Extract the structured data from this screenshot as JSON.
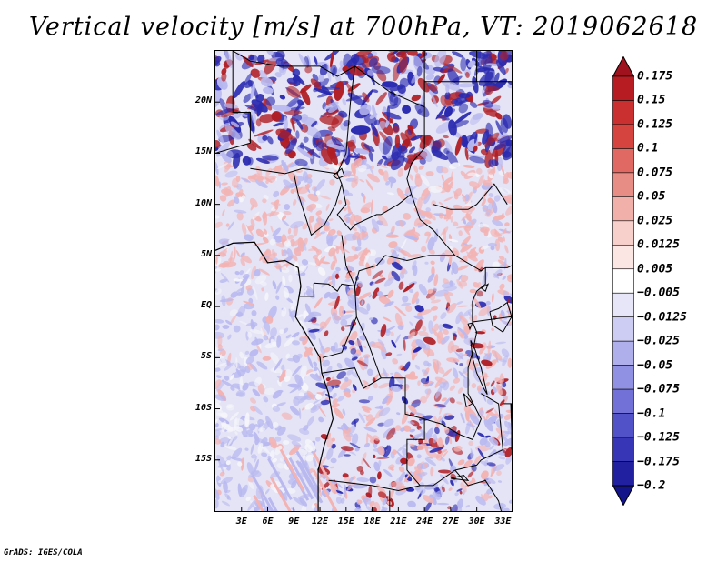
{
  "title": "Vertical velocity [m/s] at 700hPa, VT: 2019062618",
  "credit": "GrADS: IGES/COLA",
  "map": {
    "lon_range": [
      0,
      34
    ],
    "lat_range": [
      -20,
      25
    ],
    "lat_ticks": [
      {
        "value": 20,
        "label": "20N"
      },
      {
        "value": 15,
        "label": "15N"
      },
      {
        "value": 10,
        "label": "10N"
      },
      {
        "value": 5,
        "label": "5N"
      },
      {
        "value": 0,
        "label": "EQ"
      },
      {
        "value": -5,
        "label": "5S"
      },
      {
        "value": -10,
        "label": "10S"
      },
      {
        "value": -15,
        "label": "15S"
      }
    ],
    "lon_ticks": [
      {
        "value": 3,
        "label": "3E"
      },
      {
        "value": 6,
        "label": "6E"
      },
      {
        "value": 9,
        "label": "9E"
      },
      {
        "value": 12,
        "label": "12E"
      },
      {
        "value": 15,
        "label": "15E"
      },
      {
        "value": 18,
        "label": "18E"
      },
      {
        "value": 21,
        "label": "21E"
      },
      {
        "value": 24,
        "label": "24E"
      },
      {
        "value": 27,
        "label": "27E"
      },
      {
        "value": 30,
        "label": "30E"
      },
      {
        "value": 33,
        "label": "33E"
      }
    ],
    "field_colors": {
      "strong_up": "#b01e24",
      "weak_up": "#f3b3b3",
      "neutral": "#f4f4fa",
      "weak_down": "#b9b9f0",
      "strong_down": "#2a2ab0"
    }
  },
  "colorbar": {
    "labels": [
      "0.175",
      "0.15",
      "0.125",
      "0.1",
      "0.075",
      "0.05",
      "0.025",
      "0.0125",
      "0.005",
      "−0.005",
      "−0.0125",
      "−0.025",
      "−0.05",
      "−0.075",
      "−0.1",
      "−0.125",
      "−0.175",
      "−0.2"
    ],
    "colors": [
      "#a0131e",
      "#b71c23",
      "#c9302f",
      "#d6443f",
      "#e06a63",
      "#e88d86",
      "#f1b0aa",
      "#f7cfcb",
      "#fbe6e4",
      "#ffffff",
      "#e6e6f8",
      "#cdcdf3",
      "#afafec",
      "#9191e3",
      "#7171d8",
      "#5252c8",
      "#3636b7",
      "#2020a0",
      "#14148a"
    ]
  }
}
